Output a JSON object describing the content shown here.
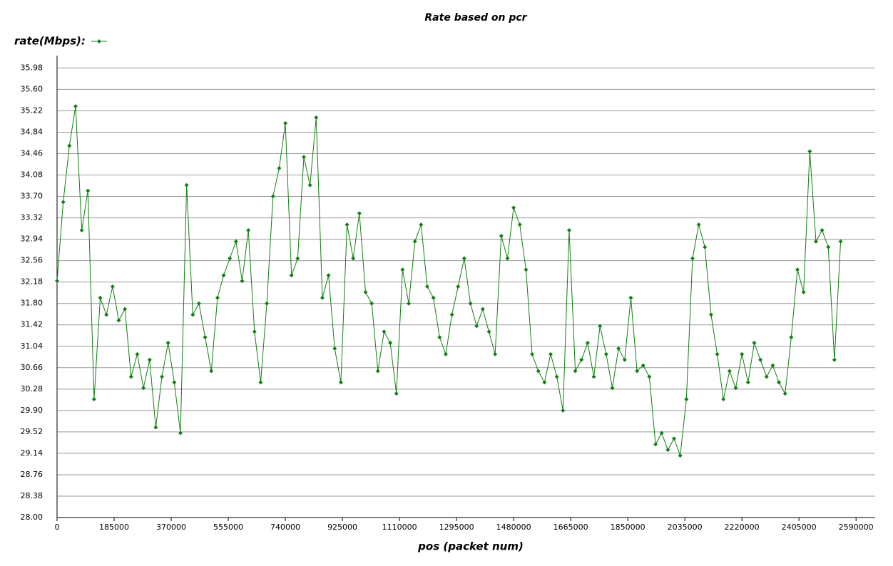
{
  "chart_data": {
    "type": "line",
    "title": "Rate based on pcr",
    "x_label": "pos (packet num)",
    "series": [
      {
        "name": "rate(Mbps):",
        "color": "#108010",
        "x": [
          0,
          20000,
          40000,
          60000,
          80000,
          100000,
          120000,
          140000,
          160000,
          180000,
          200000,
          220000,
          240000,
          260000,
          280000,
          300000,
          320000,
          340000,
          360000,
          380000,
          400000,
          420000,
          440000,
          460000,
          480000,
          500000,
          520000,
          540000,
          560000,
          580000,
          600000,
          620000,
          640000,
          660000,
          680000,
          700000,
          720000,
          740000,
          760000,
          780000,
          800000,
          820000,
          840000,
          860000,
          880000,
          900000,
          920000,
          940000,
          960000,
          980000,
          1000000,
          1020000,
          1040000,
          1060000,
          1080000,
          1100000,
          1120000,
          1140000,
          1160000,
          1180000,
          1200000,
          1220000,
          1240000,
          1260000,
          1280000,
          1300000,
          1320000,
          1340000,
          1360000,
          1380000,
          1400000,
          1420000,
          1440000,
          1460000,
          1480000,
          1500000,
          1520000,
          1540000,
          1560000,
          1580000,
          1600000,
          1620000,
          1640000,
          1660000,
          1680000,
          1700000,
          1720000,
          1740000,
          1760000,
          1780000,
          1800000,
          1820000,
          1840000,
          1860000,
          1880000,
          1900000,
          1920000,
          1940000,
          1960000,
          1980000,
          2000000,
          2020000,
          2040000,
          2060000,
          2080000,
          2100000,
          2120000,
          2140000,
          2160000,
          2180000,
          2200000,
          2220000,
          2240000,
          2260000,
          2280000,
          2300000,
          2320000,
          2340000,
          2360000,
          2380000,
          2400000,
          2420000,
          2440000,
          2460000,
          2480000,
          2500000,
          2520000,
          2540000
        ],
        "values": [
          32.2,
          33.6,
          34.6,
          35.3,
          33.1,
          33.8,
          30.1,
          31.9,
          31.6,
          32.1,
          31.5,
          31.7,
          30.5,
          30.9,
          30.3,
          30.8,
          29.6,
          30.5,
          31.1,
          30.4,
          29.5,
          33.9,
          31.6,
          31.8,
          31.2,
          30.6,
          31.9,
          32.3,
          32.6,
          32.9,
          32.2,
          33.1,
          31.3,
          30.4,
          31.8,
          33.7,
          34.2,
          35.0,
          32.3,
          32.6,
          34.4,
          33.9,
          35.1,
          31.9,
          32.3,
          31.0,
          30.4,
          33.2,
          32.6,
          33.4,
          32.0,
          31.8,
          30.6,
          31.3,
          31.1,
          30.2,
          32.4,
          31.8,
          32.9,
          33.2,
          32.1,
          31.9,
          31.2,
          30.9,
          31.6,
          32.1,
          32.6,
          31.8,
          31.4,
          31.7,
          31.3,
          30.9,
          33.0,
          32.6,
          33.5,
          33.2,
          32.4,
          30.9,
          30.6,
          30.4,
          30.9,
          30.5,
          29.9,
          33.1,
          30.6,
          30.8,
          31.1,
          30.5,
          31.4,
          30.9,
          30.3,
          31.0,
          30.8,
          31.9,
          30.6,
          30.7,
          30.5,
          29.3,
          29.5,
          29.2,
          29.4,
          29.1,
          30.1,
          32.6,
          33.2,
          32.8,
          31.6,
          30.9,
          30.1,
          30.6,
          30.3,
          30.9,
          30.4,
          31.1,
          30.8,
          30.5,
          30.7,
          30.4,
          30.2,
          31.2,
          32.4,
          32.0,
          34.5,
          32.9,
          33.1,
          32.8,
          30.8,
          32.9
        ]
      }
    ],
    "xlim": [
      0,
      2652000
    ],
    "ylim": [
      28,
      36.2
    ],
    "xticks": [
      0,
      185000,
      370000,
      555000,
      740000,
      925000,
      1110000,
      1295000,
      1480000,
      1665000,
      1850000,
      2035000,
      2220000,
      2405000,
      2590000
    ],
    "yticks": [
      {
        "value": 28,
        "label": "28.00"
      },
      28.38,
      28.76,
      29.14,
      29.52,
      {
        "value": 29.9,
        "label": "29.90"
      },
      30.28,
      30.66,
      31.04,
      31.42,
      {
        "value": 31.8,
        "label": "31.80"
      },
      32.18,
      32.56,
      32.94,
      33.32,
      {
        "value": 33.7,
        "label": "33.70"
      },
      34.08,
      34.46,
      34.84,
      35.22,
      {
        "value": 35.6,
        "label": "35.60"
      },
      35.98
    ],
    "grid": true,
    "legend": "top-left"
  }
}
